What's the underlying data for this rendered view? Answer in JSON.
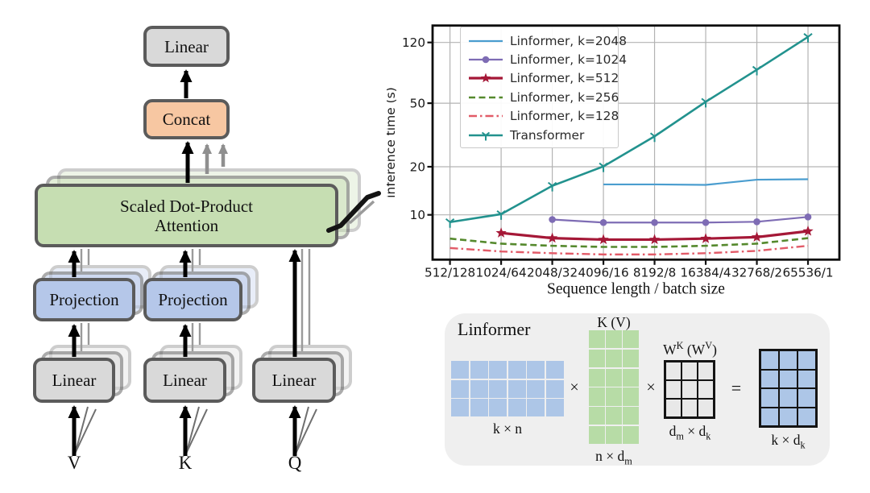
{
  "attention_diagram": {
    "output_linear_label": "Linear",
    "concat_label": "Concat",
    "attention_label_line1": "Scaled Dot-Product",
    "attention_label_line2": "Attention",
    "projection_v_label": "Projection",
    "projection_k_label": "Projection",
    "linear_v_label": "Linear",
    "linear_k_label": "Linear",
    "linear_q_label": "Linear",
    "input_v_label": "V",
    "input_k_label": "K",
    "input_q_label": "Q",
    "colors": {
      "box_border": "#5b5b5b",
      "linear_fill": "#d9d9d9",
      "concat_fill": "#f7c7a2",
      "attention_fill": "#c6deb2",
      "projection_fill": "#b5c7e9"
    }
  },
  "chart_data": {
    "type": "line",
    "title": "",
    "xlabel": "Sequence length / batch size",
    "ylabel": "inference time (s)",
    "x_categories": [
      "512/128",
      "1024/64",
      "2048/32",
      "4096/16",
      "8192/8",
      "16384/4",
      "32768/2",
      "65536/1"
    ],
    "y_scale": "log",
    "y_ticks": [
      10,
      20,
      50,
      120
    ],
    "ylim": [
      5.2,
      153
    ],
    "grid": true,
    "legend_position": "upper left",
    "series": [
      {
        "name": "Linformer, k=2048",
        "color": "#4a9dcf",
        "style": "solid",
        "marker": "none",
        "width": 2.2,
        "start_index": 3,
        "values": [
          15.5,
          15.5,
          15.4,
          16.6,
          16.7
        ]
      },
      {
        "name": "Linformer, k=1024",
        "color": "#7e6cb4",
        "style": "solid",
        "marker": "circle",
        "width": 2.2,
        "start_index": 2,
        "values": [
          9.35,
          8.95,
          8.95,
          8.95,
          9.05,
          9.7
        ]
      },
      {
        "name": "Linformer, k=512",
        "color": "#a51837",
        "style": "solid",
        "marker": "star",
        "width": 3.2,
        "start_index": 1,
        "values": [
          7.7,
          7.15,
          7.0,
          7.0,
          7.1,
          7.25,
          7.9
        ]
      },
      {
        "name": "Linformer, k=256",
        "color": "#55892d",
        "style": "dashed",
        "marker": "none",
        "width": 2.6,
        "start_index": 0,
        "values": [
          7.1,
          6.6,
          6.4,
          6.3,
          6.3,
          6.4,
          6.6,
          7.15
        ]
      },
      {
        "name": "Linformer, k=128",
        "color": "#e25b68",
        "style": "dashdot",
        "marker": "none",
        "width": 2.4,
        "start_index": 0,
        "values": [
          6.2,
          5.9,
          5.75,
          5.65,
          5.65,
          5.75,
          5.95,
          6.4
        ]
      },
      {
        "name": "Transformer",
        "color": "#22928e",
        "style": "solid",
        "marker": "tri_down",
        "width": 2.6,
        "start_index": 0,
        "values": [
          9.0,
          10.1,
          15.2,
          20.1,
          31,
          51,
          81,
          130
        ]
      }
    ]
  },
  "linformer_diagram": {
    "title": "Linformer",
    "panel_bg": "#efefef",
    "operators": {
      "op1": "×",
      "op2": "×",
      "op3": "="
    },
    "matrices": [
      {
        "id": "k-n",
        "label_above": "",
        "label_below": "k × n",
        "rows": 3,
        "cols": 6,
        "fill": "#adc6e7",
        "bordered": false
      },
      {
        "id": "n-dm",
        "label_above": "K (V)",
        "label_below": "n × d_m",
        "rows": 6,
        "cols": 3,
        "fill": "#b7dca6",
        "bordered": false
      },
      {
        "id": "dm-dk",
        "label_above": "W^K (W^V)",
        "label_below": "d_m × d_k",
        "rows": 3,
        "cols": 3,
        "fill": "#e8e8e8",
        "bordered": true
      },
      {
        "id": "k-dk",
        "label_above": "",
        "label_below": "k × d_k",
        "rows": 4,
        "cols": 3,
        "fill": "#adc6e7",
        "bordered": true
      }
    ]
  }
}
